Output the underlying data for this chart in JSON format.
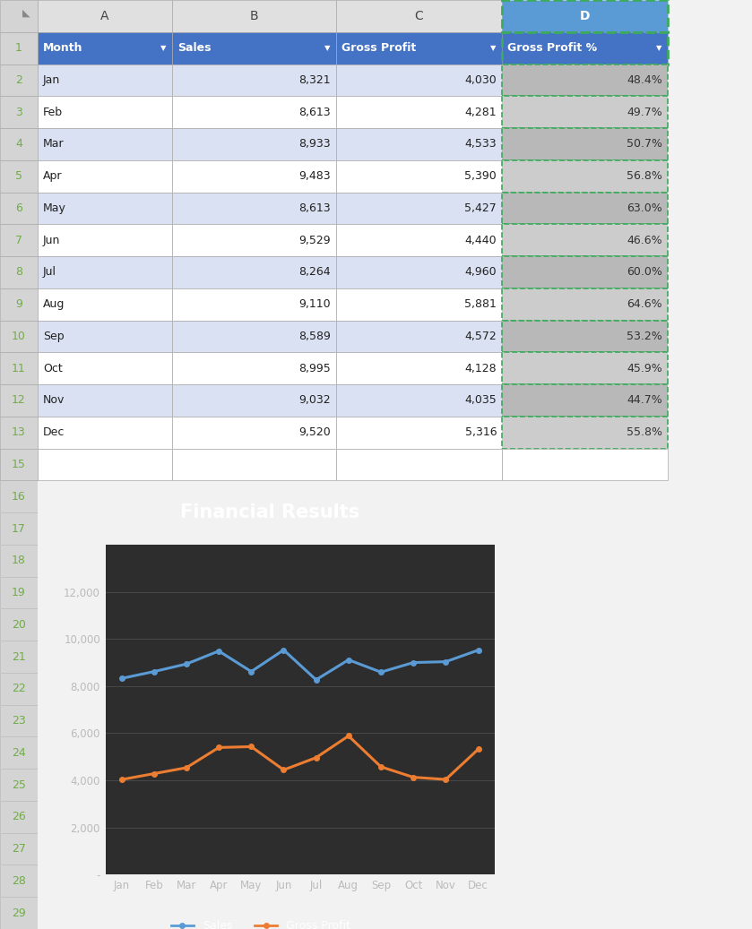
{
  "months": [
    "Jan",
    "Feb",
    "Mar",
    "Apr",
    "May",
    "Jun",
    "Jul",
    "Aug",
    "Sep",
    "Oct",
    "Nov",
    "Dec"
  ],
  "sales": [
    8321,
    8613,
    8933,
    9483,
    8613,
    9529,
    8264,
    9110,
    8589,
    8995,
    9032,
    9520
  ],
  "gross_profit": [
    4030,
    4281,
    4533,
    5390,
    5427,
    4440,
    4960,
    5881,
    4572,
    4128,
    4035,
    5316
  ],
  "gross_profit_pct": [
    "48.4%",
    "49.7%",
    "50.7%",
    "56.8%",
    "63.0%",
    "46.6%",
    "60.0%",
    "64.6%",
    "53.2%",
    "45.9%",
    "44.7%",
    "55.8%"
  ],
  "header_bg": "#4472C4",
  "header_text": "#FFFFFF",
  "row_even_bg": "#D9E1F2",
  "row_odd_bg": "#FFFFFF",
  "col_d_even_bg": "#B8B8B8",
  "col_d_odd_bg": "#CCCCCC",
  "row_num_bg": "#D4D4D4",
  "row_num_text": "#70AD47",
  "col_letter_bg": "#E0E0E0",
  "col_letter_d_bg": "#5B9BD5",
  "col_letter_d_text": "#FFFFFF",
  "border_color": "#AAAAAA",
  "dashed_border_color": "#3DAA5C",
  "chart_bg": "#2D2D2D",
  "chart_title": "Financial Results",
  "chart_title_color": "#FFFFFF",
  "chart_title_fontsize": 15,
  "sales_line_color": "#5B9BD5",
  "gross_profit_line_color": "#ED7D31",
  "axis_text_color": "#BBBBBB",
  "grid_color": "#484848",
  "legend_text_color": "#FFFFFF",
  "ylim": [
    0,
    14000
  ],
  "yticks": [
    0,
    2000,
    4000,
    6000,
    8000,
    10000,
    12000
  ],
  "ytick_labels": [
    "-",
    "2,000",
    "4,000",
    "6,000",
    "8,000",
    "10,000",
    "12,000"
  ],
  "outer_bg": "#F2F2F2",
  "total_excel_rows": 29,
  "ss_data_rows": 13,
  "col_letter_row": 1,
  "empty_row_14": 1
}
